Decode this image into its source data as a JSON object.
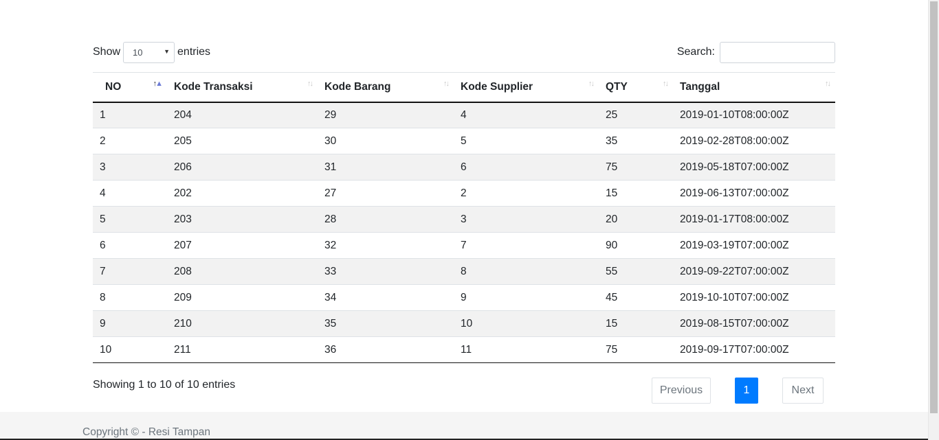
{
  "length": {
    "show_label": "Show",
    "value": "10",
    "entries_label": "entries"
  },
  "search": {
    "label": "Search:",
    "value": ""
  },
  "table": {
    "headers": [
      "NO",
      "Kode Transaksi",
      "Kode Barang",
      "Kode Supplier",
      "QTY",
      "Tanggal"
    ],
    "sorted_column": "NO",
    "sort_direction": "ascending",
    "rows": [
      [
        "1",
        "204",
        "29",
        "4",
        "25",
        "2019-01-10T08:00:00Z"
      ],
      [
        "2",
        "205",
        "30",
        "5",
        "35",
        "2019-02-28T08:00:00Z"
      ],
      [
        "3",
        "206",
        "31",
        "6",
        "75",
        "2019-05-18T07:00:00Z"
      ],
      [
        "4",
        "202",
        "27",
        "2",
        "15",
        "2019-06-13T07:00:00Z"
      ],
      [
        "5",
        "203",
        "28",
        "3",
        "20",
        "2019-01-17T08:00:00Z"
      ],
      [
        "6",
        "207",
        "32",
        "7",
        "90",
        "2019-03-19T07:00:00Z"
      ],
      [
        "7",
        "208",
        "33",
        "8",
        "55",
        "2019-09-22T07:00:00Z"
      ],
      [
        "8",
        "209",
        "34",
        "9",
        "45",
        "2019-10-10T07:00:00Z"
      ],
      [
        "9",
        "210",
        "35",
        "10",
        "15",
        "2019-08-15T07:00:00Z"
      ],
      [
        "10",
        "211",
        "36",
        "11",
        "75",
        "2019-09-17T07:00:00Z"
      ]
    ]
  },
  "info": "Showing 1 to 10 of 10 entries",
  "pagination": {
    "previous": "Previous",
    "current": "1",
    "next": "Next"
  },
  "footer": {
    "copyright": "Copyright © - Resi Tampan"
  },
  "colors": {
    "accent": "#007bff",
    "stripe": "#f2f2f2",
    "footer_bg": "#f5f5f5"
  }
}
